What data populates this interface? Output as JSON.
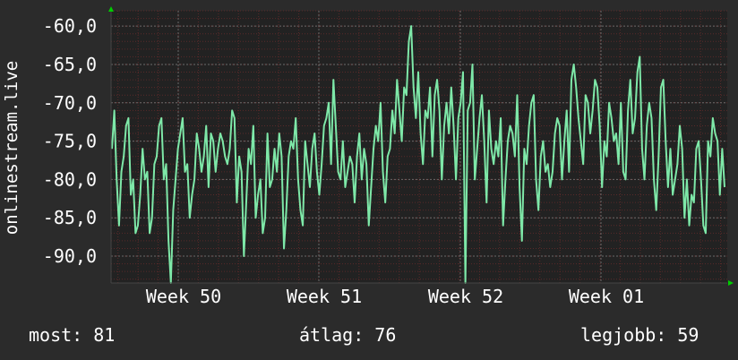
{
  "chart_data": {
    "type": "line",
    "ylabel": "onlinestream.live",
    "ylim": [
      -93.5,
      -58
    ],
    "y_ticks": [
      "-60,0",
      "-65,0",
      "-70,0",
      "-75,0",
      "-80,0",
      "-85,0",
      "-90,0"
    ],
    "y_tick_values": [
      -60,
      -65,
      -70,
      -75,
      -80,
      -85,
      -90
    ],
    "x_ticks": [
      "Week 50",
      "Week 51",
      "Week 52",
      "Week 01"
    ],
    "grid": true,
    "colors": {
      "background": "#2b2b2b",
      "plot_bg": "#222222",
      "line": "#7ee8a8",
      "grid_minor": "#5a2a2a",
      "grid_major": "#6a6a6a",
      "axis_arrow": "#00cc00"
    },
    "series": [
      {
        "values": [
          -76,
          -71,
          -80,
          -86,
          -79,
          -77,
          -73,
          -72,
          -82,
          -80,
          -87,
          -86,
          -82,
          -76,
          -80,
          -79,
          -87,
          -85,
          -78,
          -77,
          -73,
          -72,
          -80,
          -78,
          -88,
          -93.5,
          -84,
          -80,
          -76,
          -74,
          -72,
          -79,
          -78,
          -85,
          -82,
          -80,
          -74,
          -76,
          -79,
          -77,
          -73,
          -81,
          -74,
          -75,
          -79,
          -76,
          -74,
          -75,
          -77,
          -78,
          -76,
          -71,
          -72,
          -83,
          -77,
          -79,
          -90,
          -83,
          -76,
          -78,
          -73,
          -85,
          -82,
          -80,
          -87,
          -85,
          -74,
          -81,
          -80,
          -76,
          -79,
          -74,
          -77,
          -89,
          -84,
          -77,
          -75,
          -76,
          -72,
          -80,
          -84,
          -86,
          -75,
          -78,
          -81,
          -76,
          -74,
          -79,
          -82,
          -78,
          -73,
          -72,
          -70,
          -78,
          -67,
          -73,
          -79,
          -80,
          -75,
          -81,
          -79,
          -77,
          -78,
          -83,
          -77,
          -74,
          -80,
          -76,
          -78,
          -86,
          -81,
          -76,
          -73,
          -75,
          -70,
          -79,
          -83,
          -77,
          -76,
          -71,
          -74,
          -67,
          -71,
          -75,
          -68,
          -69,
          -62,
          -60,
          -68,
          -72,
          -66,
          -74,
          -78,
          -71,
          -72,
          -68,
          -77,
          -69,
          -67,
          -71,
          -80,
          -73,
          -70,
          -74,
          -68,
          -73,
          -80,
          -72,
          -70,
          -66,
          -93.5,
          -71,
          -70,
          -65,
          -80,
          -76,
          -72,
          -69,
          -75,
          -83,
          -71,
          -76,
          -78,
          -75,
          -77,
          -72,
          -86,
          -80,
          -75,
          -73,
          -74,
          -77,
          -69,
          -81,
          -88,
          -76,
          -78,
          -73,
          -70,
          -69,
          -80,
          -84,
          -77,
          -75,
          -79,
          -78,
          -81,
          -79,
          -74,
          -72,
          -73,
          -80,
          -75,
          -71,
          -79,
          -67,
          -65,
          -68,
          -72,
          -75,
          -78,
          -69,
          -70,
          -74,
          -71,
          -67,
          -68,
          -73,
          -81,
          -75,
          -77,
          -70,
          -72,
          -75,
          -74,
          -78,
          -70,
          -79,
          -80,
          -71,
          -67,
          -74,
          -72,
          -66,
          -64,
          -76,
          -80,
          -73,
          -70,
          -72,
          -80,
          -84,
          -77,
          -68,
          -67,
          -75,
          -81,
          -76,
          -82,
          -80,
          -78,
          -73,
          -76,
          -85,
          -80,
          -86,
          -82,
          -83,
          -76,
          -75,
          -80,
          -86,
          -87,
          -75,
          -77,
          -72,
          -74,
          -75,
          -82,
          -76,
          -81
        ]
      }
    ]
  },
  "footer": {
    "current": "most: 81",
    "average": "átlag: 76",
    "best": "legjobb: 59"
  }
}
